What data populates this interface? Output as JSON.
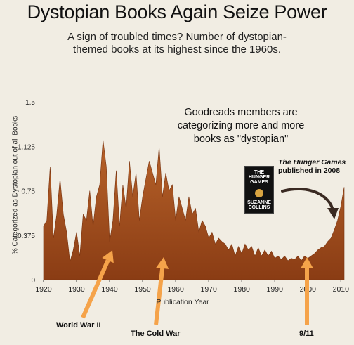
{
  "chart_data": {
    "type": "area",
    "title": "Dystopian Books Again Seize Power",
    "subtitle_line1": "A sign of troubled times? Number of dystopian-",
    "subtitle_line2": "themed books at its highest since the 1960s.",
    "xlabel": "Publication Year",
    "ylabel": "% Categorized as Dystopian out of all Books",
    "xlim": [
      1920,
      2011
    ],
    "ylim": [
      0,
      1.5
    ],
    "x_ticks": [
      1920,
      1930,
      1940,
      1950,
      1960,
      1970,
      1980,
      1990,
      2000,
      2010
    ],
    "y_ticks": [
      "0",
      "0.375",
      "0.75",
      "1.125",
      "1.5"
    ],
    "y_tick_values": [
      0,
      0.375,
      0.75,
      1.125,
      1.5
    ],
    "grid": false,
    "fill_color": "#9a4a1a",
    "x": [
      1920,
      1921,
      1922,
      1923,
      1924,
      1925,
      1926,
      1927,
      1928,
      1929,
      1930,
      1931,
      1932,
      1933,
      1934,
      1935,
      1936,
      1937,
      1938,
      1939,
      1940,
      1941,
      1942,
      1943,
      1944,
      1945,
      1946,
      1947,
      1948,
      1949,
      1950,
      1951,
      1952,
      1953,
      1954,
      1955,
      1956,
      1957,
      1958,
      1959,
      1960,
      1961,
      1962,
      1963,
      1964,
      1965,
      1966,
      1967,
      1968,
      1969,
      1970,
      1971,
      1972,
      1973,
      1974,
      1975,
      1976,
      1977,
      1978,
      1979,
      1980,
      1981,
      1982,
      1983,
      1984,
      1985,
      1986,
      1987,
      1988,
      1989,
      1990,
      1991,
      1992,
      1993,
      1994,
      1995,
      1996,
      1997,
      1998,
      1999,
      2000,
      2001,
      2002,
      2003,
      2004,
      2005,
      2006,
      2007,
      2008,
      2009,
      2010,
      2011
    ],
    "values": [
      0.45,
      0.5,
      0.95,
      0.35,
      0.55,
      0.85,
      0.55,
      0.4,
      0.15,
      0.25,
      0.4,
      0.2,
      0.55,
      0.5,
      0.75,
      0.45,
      0.7,
      0.8,
      1.18,
      0.95,
      0.32,
      0.5,
      0.92,
      0.45,
      0.8,
      0.6,
      1.0,
      0.7,
      0.9,
      0.5,
      0.7,
      0.85,
      1.0,
      0.9,
      0.8,
      1.12,
      0.7,
      0.9,
      0.75,
      0.8,
      0.5,
      0.7,
      0.6,
      0.5,
      0.7,
      0.55,
      0.6,
      0.4,
      0.5,
      0.45,
      0.35,
      0.4,
      0.3,
      0.35,
      0.32,
      0.3,
      0.25,
      0.3,
      0.2,
      0.28,
      0.22,
      0.3,
      0.25,
      0.28,
      0.2,
      0.27,
      0.2,
      0.25,
      0.2,
      0.24,
      0.18,
      0.2,
      0.17,
      0.2,
      0.16,
      0.18,
      0.17,
      0.2,
      0.16,
      0.2,
      0.18,
      0.2,
      0.22,
      0.25,
      0.27,
      0.28,
      0.32,
      0.35,
      0.42,
      0.5,
      0.62,
      0.78
    ],
    "annotations": {
      "goodreads_line1": "Goodreads members are",
      "goodreads_line2": "categorizing more and more",
      "goodreads_line3": "books as \"dystopian\"",
      "hunger_games_title": "The Hunger Games",
      "hunger_games_detail": "published in 2008",
      "ww2": "World War II",
      "cold_war": "The Cold War",
      "nine_eleven": "9/11"
    },
    "arrow_color": "#f5a34a"
  },
  "book_cover": {
    "line1": "THE",
    "line2": "HUNGER",
    "line3": "GAMES",
    "author_line1": "SUZANNE",
    "author_line2": "COLLINS"
  }
}
